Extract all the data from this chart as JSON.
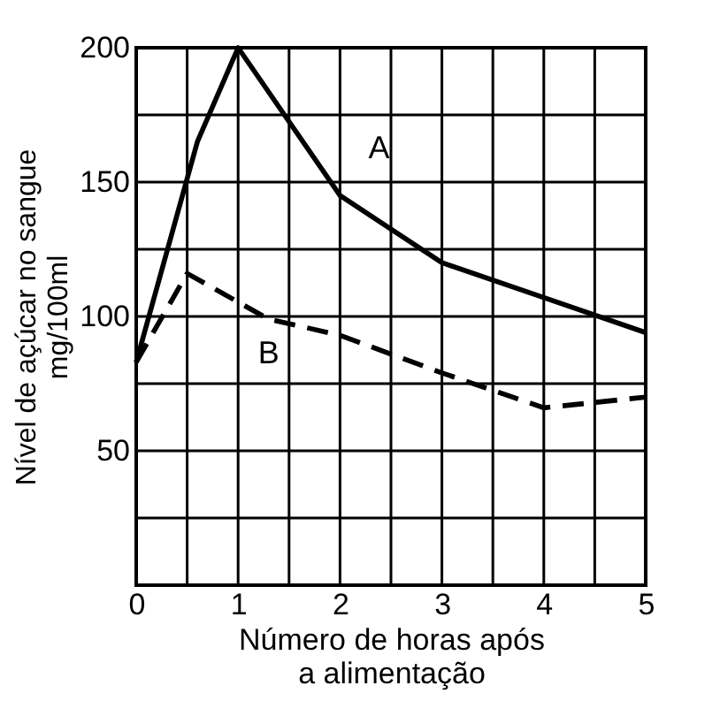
{
  "chart_data": {
    "type": "line",
    "xlabel": "Número de horas após\na alimentação",
    "ylabel": "Nível de açúcar no sangue\nmg/100ml",
    "xlim": [
      0,
      5
    ],
    "ylim": [
      0,
      200
    ],
    "xticks": [
      0,
      {
        "value": 0.5,
        "label": null
      },
      1,
      {
        "value": 1.5,
        "label": null
      },
      2,
      {
        "value": 2.5,
        "label": null
      },
      3,
      {
        "value": 3.5,
        "label": null
      },
      4,
      {
        "value": 4.5,
        "label": null
      },
      5
    ],
    "yticks": [
      {
        "value": 0,
        "label": null
      },
      {
        "value": 25,
        "label": null
      },
      50,
      {
        "value": 75,
        "label": null
      },
      100,
      {
        "value": 125,
        "label": null
      },
      150,
      {
        "value": 175,
        "label": null
      },
      200
    ],
    "grid": true,
    "series": [
      {
        "name": "A",
        "color": "#000000",
        "line_style": "solid",
        "x": [
          0,
          0.6,
          1,
          2,
          3,
          4,
          5
        ],
        "values": [
          83,
          165,
          200,
          145,
          120,
          107,
          94
        ]
      },
      {
        "name": "B",
        "color": "#000000",
        "line_style": "dashed",
        "x": [
          0,
          0.5,
          1.3,
          2,
          3,
          4,
          5
        ],
        "values": [
          83,
          116,
          99,
          93,
          79,
          66,
          70
        ]
      }
    ]
  }
}
